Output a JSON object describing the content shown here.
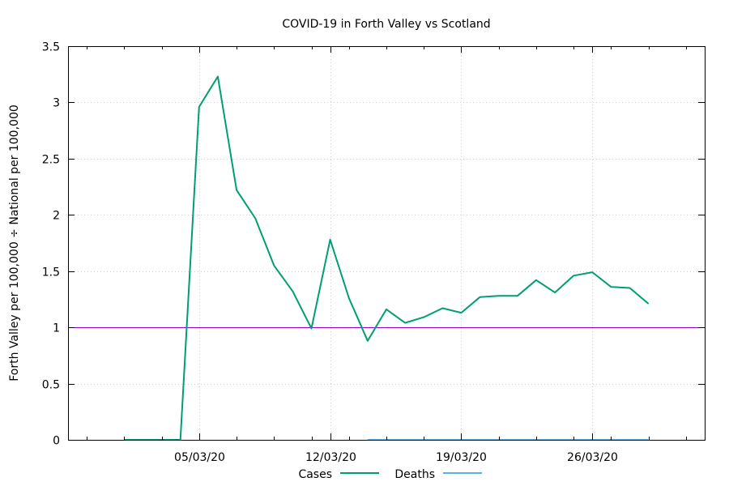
{
  "chart_data": {
    "type": "line",
    "title": "COVID-19 in Forth Valley vs Scotland",
    "xlabel": "",
    "ylabel": "Forth Valley per 100,000 ÷ National per 100,000",
    "ylim": [
      0,
      3.5
    ],
    "xlim": [
      "2020-02-27",
      "2020-04-01"
    ],
    "x_tick_labels": [
      "05/03/20",
      "12/03/20",
      "19/03/20",
      "26/03/20"
    ],
    "x_tick_dates": [
      "2020-03-05",
      "2020-03-12",
      "2020-03-19",
      "2020-03-26"
    ],
    "y_ticks": [
      0,
      0.5,
      1,
      1.5,
      2,
      2.5,
      3,
      3.5
    ],
    "y_tick_labels": [
      "0",
      "0.5",
      "1",
      "1.5",
      "2",
      "2.5",
      "3",
      "3.5"
    ],
    "grid": true,
    "legend_position": "bottom",
    "x": [
      "2020-03-01",
      "2020-03-02",
      "2020-03-03",
      "2020-03-04",
      "2020-03-05",
      "2020-03-06",
      "2020-03-07",
      "2020-03-08",
      "2020-03-09",
      "2020-03-10",
      "2020-03-11",
      "2020-03-12",
      "2020-03-13",
      "2020-03-14",
      "2020-03-15",
      "2020-03-16",
      "2020-03-17",
      "2020-03-18",
      "2020-03-19",
      "2020-03-20",
      "2020-03-21",
      "2020-03-22",
      "2020-03-23",
      "2020-03-24",
      "2020-03-25",
      "2020-03-26",
      "2020-03-27",
      "2020-03-28",
      "2020-03-29",
      "2020-03-30"
    ],
    "series": [
      {
        "name": "Cases",
        "color": "#009e73",
        "values": [
          0,
          0,
          0,
          0,
          2.96,
          3.23,
          2.22,
          1.97,
          1.55,
          1.32,
          0.99,
          1.78,
          1.26,
          0.88,
          1.16,
          1.04,
          1.09,
          1.17,
          1.13,
          1.27,
          1.28,
          1.28,
          1.42,
          1.31,
          1.46,
          1.49,
          1.36,
          1.35,
          1.21,
          null
        ]
      },
      {
        "name": "Deaths",
        "color": "#56b4e9",
        "values": [
          null,
          null,
          null,
          null,
          null,
          null,
          null,
          null,
          null,
          null,
          null,
          null,
          null,
          0,
          0,
          0,
          0,
          0,
          0,
          0,
          0,
          0,
          0,
          0,
          0,
          0,
          0,
          0,
          0,
          null
        ]
      }
    ],
    "reference_line": {
      "y": 1,
      "color": "#9400d3"
    }
  }
}
